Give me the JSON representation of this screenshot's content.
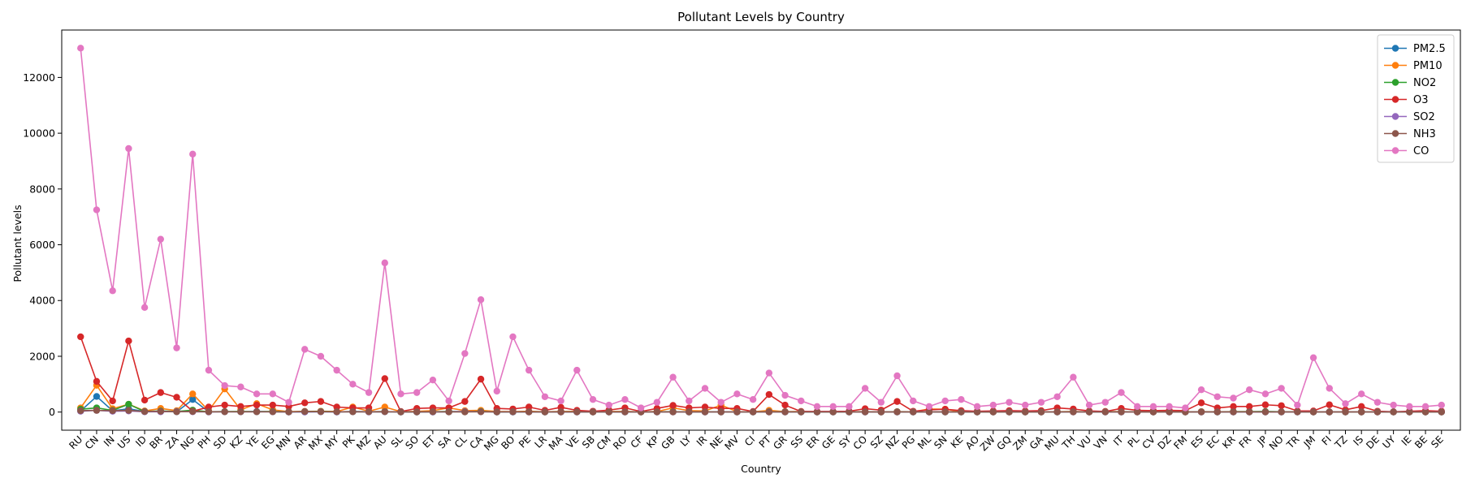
{
  "chart_data": {
    "type": "line",
    "title": "Pollutant Levels by Country",
    "xlabel": "Country",
    "ylabel": "Pollutant levels",
    "ylim": [
      -650,
      13700
    ],
    "yticks": [
      0,
      2000,
      4000,
      6000,
      8000,
      10000,
      12000
    ],
    "grid": false,
    "legend_position": "top-right",
    "categories": [
      "RU",
      "CN",
      "IN",
      "US",
      "ID",
      "BR",
      "ZA",
      "NG",
      "PH",
      "SD",
      "KZ",
      "YE",
      "EG",
      "MN",
      "AR",
      "MX",
      "MY",
      "PK",
      "MZ",
      "AU",
      "SL",
      "SO",
      "ET",
      "SA",
      "CL",
      "CA",
      "MG",
      "BO",
      "PE",
      "LR",
      "MA",
      "VE",
      "SB",
      "CM",
      "RO",
      "CF",
      "KP",
      "GB",
      "LY",
      "IR",
      "NE",
      "MV",
      "CI",
      "PT",
      "GR",
      "SS",
      "ER",
      "GE",
      "SY",
      "CO",
      "SZ",
      "NZ",
      "PG",
      "ML",
      "SN",
      "KE",
      "AO",
      "ZW",
      "GQ",
      "ZM",
      "GA",
      "MU",
      "TH",
      "VU",
      "VN",
      "IT",
      "PL",
      "CV",
      "DZ",
      "FM",
      "ES",
      "EC",
      "KR",
      "FR",
      "JP",
      "NO",
      "TR",
      "JM",
      "FI",
      "TZ",
      "IS",
      "DE",
      "UY",
      "IE",
      "BE",
      "SE"
    ],
    "series": [
      {
        "name": "PM2.5",
        "color": "#1f77b4",
        "values": [
          40,
          560,
          45,
          120,
          15,
          20,
          10,
          450,
          10,
          15,
          10,
          20,
          10,
          5,
          5,
          10,
          5,
          20,
          10,
          15,
          5,
          5,
          5,
          10,
          15,
          25,
          5,
          5,
          10,
          5,
          5,
          5,
          5,
          5,
          5,
          5,
          5,
          10,
          5,
          5,
          10,
          5,
          5,
          10,
          5,
          5,
          5,
          5,
          5,
          5,
          5,
          5,
          5,
          5,
          5,
          5,
          5,
          5,
          5,
          5,
          5,
          5,
          10,
          5,
          5,
          5,
          5,
          5,
          5,
          5,
          5,
          5,
          5,
          5,
          5,
          5,
          5,
          5,
          5,
          5,
          5,
          5,
          5,
          5,
          5,
          5
        ]
      },
      {
        "name": "PM10",
        "color": "#ff7f0e",
        "values": [
          150,
          960,
          120,
          280,
          40,
          130,
          50,
          650,
          50,
          830,
          80,
          300,
          80,
          15,
          25,
          30,
          20,
          180,
          30,
          180,
          15,
          25,
          50,
          150,
          50,
          60,
          20,
          15,
          30,
          10,
          20,
          25,
          5,
          20,
          25,
          5,
          20,
          150,
          50,
          40,
          250,
          15,
          10,
          60,
          15,
          20,
          10,
          10,
          10,
          15,
          5,
          15,
          10,
          110,
          100,
          15,
          5,
          5,
          5,
          5,
          5,
          10,
          20,
          5,
          20,
          15,
          5,
          5,
          10,
          5,
          15,
          10,
          15,
          15,
          10,
          10,
          10,
          5,
          5,
          5,
          5,
          5,
          5,
          5,
          5,
          5
        ]
      },
      {
        "name": "NO2",
        "color": "#2ca02c",
        "values": [
          100,
          150,
          60,
          280,
          20,
          40,
          20,
          70,
          10,
          15,
          20,
          10,
          20,
          10,
          15,
          20,
          10,
          10,
          10,
          15,
          5,
          5,
          10,
          20,
          10,
          20,
          5,
          5,
          10,
          5,
          10,
          10,
          5,
          5,
          10,
          5,
          10,
          15,
          5,
          10,
          5,
          5,
          5,
          10,
          10,
          5,
          5,
          5,
          5,
          10,
          5,
          10,
          5,
          5,
          5,
          5,
          5,
          5,
          5,
          5,
          5,
          5,
          15,
          5,
          10,
          10,
          10,
          5,
          10,
          5,
          10,
          5,
          15,
          15,
          20,
          10,
          10,
          5,
          5,
          5,
          5,
          10,
          5,
          5,
          5,
          5
        ]
      },
      {
        "name": "O3",
        "color": "#d62728",
        "values": [
          2700,
          1100,
          400,
          2550,
          430,
          700,
          530,
          30,
          180,
          250,
          200,
          250,
          250,
          200,
          330,
          380,
          180,
          150,
          150,
          1200,
          20,
          130,
          150,
          150,
          380,
          1180,
          130,
          110,
          180,
          60,
          170,
          60,
          30,
          70,
          150,
          20,
          130,
          240,
          150,
          180,
          130,
          130,
          20,
          630,
          250,
          20,
          20,
          20,
          30,
          120,
          70,
          380,
          30,
          80,
          100,
          50,
          30,
          40,
          50,
          40,
          50,
          150,
          110,
          40,
          20,
          130,
          60,
          50,
          60,
          50,
          330,
          150,
          200,
          200,
          260,
          230,
          40,
          40,
          260,
          80,
          200,
          30,
          10,
          30,
          50,
          30
        ]
      },
      {
        "name": "SO2",
        "color": "#9467bd",
        "values": [
          30,
          60,
          30,
          40,
          10,
          10,
          20,
          10,
          5,
          10,
          10,
          10,
          10,
          5,
          5,
          10,
          5,
          10,
          5,
          10,
          5,
          5,
          5,
          10,
          20,
          10,
          5,
          5,
          5,
          5,
          5,
          5,
          5,
          5,
          5,
          5,
          5,
          5,
          5,
          5,
          5,
          5,
          5,
          5,
          5,
          5,
          5,
          5,
          5,
          5,
          5,
          5,
          5,
          5,
          5,
          5,
          5,
          5,
          5,
          5,
          5,
          5,
          5,
          5,
          5,
          5,
          5,
          5,
          5,
          5,
          5,
          5,
          5,
          5,
          5,
          5,
          5,
          5,
          5,
          5,
          5,
          5,
          5,
          5,
          5,
          5
        ]
      },
      {
        "name": "NH3",
        "color": "#8c564b",
        "values": [
          50,
          60,
          50,
          60,
          20,
          30,
          10,
          20,
          10,
          10,
          10,
          10,
          10,
          5,
          20,
          15,
          10,
          10,
          10,
          15,
          5,
          5,
          10,
          5,
          5,
          10,
          5,
          10,
          5,
          5,
          5,
          5,
          5,
          5,
          5,
          5,
          5,
          5,
          5,
          5,
          5,
          5,
          5,
          5,
          5,
          5,
          5,
          5,
          5,
          5,
          5,
          5,
          5,
          5,
          5,
          5,
          5,
          5,
          5,
          5,
          5,
          5,
          5,
          5,
          5,
          5,
          5,
          5,
          5,
          5,
          5,
          5,
          5,
          5,
          5,
          5,
          5,
          5,
          5,
          5,
          5,
          5,
          5,
          5,
          5,
          5
        ]
      },
      {
        "name": "CO",
        "color": "#e377c2",
        "values": [
          13050,
          7250,
          4350,
          9450,
          3750,
          6200,
          2300,
          9250,
          1500,
          950,
          900,
          650,
          650,
          350,
          2250,
          2000,
          1500,
          1000,
          700,
          5350,
          650,
          700,
          1150,
          400,
          2100,
          4030,
          750,
          2700,
          1500,
          550,
          400,
          1500,
          450,
          250,
          450,
          150,
          350,
          1250,
          400,
          850,
          350,
          650,
          450,
          1400,
          600,
          400,
          200,
          200,
          200,
          850,
          350,
          1300,
          400,
          200,
          400,
          450,
          200,
          250,
          350,
          250,
          350,
          550,
          1250,
          250,
          350,
          700,
          200,
          200,
          200,
          150,
          800,
          550,
          500,
          800,
          650,
          850,
          250,
          1950,
          850,
          300,
          650,
          350,
          250,
          200,
          200,
          250
        ]
      }
    ]
  }
}
